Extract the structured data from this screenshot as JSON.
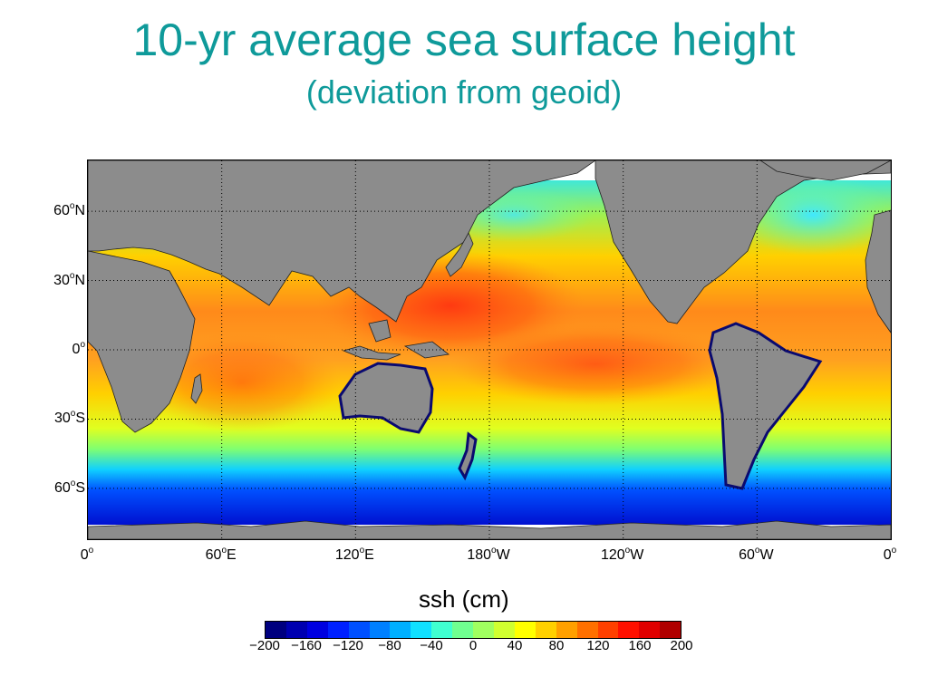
{
  "title": "10-yr average sea surface height",
  "subtitle": "(deviation from geoid)",
  "map": {
    "lat_labels": [
      {
        "lat": 60,
        "num": "60",
        "hemi": "N"
      },
      {
        "lat": 30,
        "num": "30",
        "hemi": "N"
      },
      {
        "lat": 0,
        "num": "0",
        "hemi": ""
      },
      {
        "lat": -30,
        "num": "30",
        "hemi": "S"
      },
      {
        "lat": -60,
        "num": "60",
        "hemi": "S"
      }
    ],
    "lon_labels": [
      {
        "lon": 0,
        "num": "0",
        "hemi": ""
      },
      {
        "lon": 60,
        "num": "60",
        "hemi": "E"
      },
      {
        "lon": 120,
        "num": "120",
        "hemi": "E"
      },
      {
        "lon": 180,
        "num": "180",
        "hemi": "W"
      },
      {
        "lon": 240,
        "num": "120",
        "hemi": "W"
      },
      {
        "lon": 300,
        "num": "60",
        "hemi": "W"
      },
      {
        "lon": 360,
        "num": "0",
        "hemi": ""
      }
    ],
    "lon_range": [
      0,
      360
    ],
    "lat_range": [
      -82,
      82
    ],
    "land_color": "#8c8c8c",
    "gridlines": "dotted"
  },
  "colorbar": {
    "label": "ssh (cm)",
    "ticks": [
      "−200",
      "−160",
      "−120",
      "−80",
      "−40",
      "0",
      "40",
      "80",
      "120",
      "160",
      "200"
    ],
    "range": [
      -200,
      200
    ],
    "colors": [
      "#00007f",
      "#0000b0",
      "#0000e0",
      "#0020ff",
      "#0050ff",
      "#0080ff",
      "#00b0ff",
      "#10e0ff",
      "#40ffd0",
      "#70ff90",
      "#a0ff60",
      "#d0ff30",
      "#ffff00",
      "#ffd000",
      "#ffa000",
      "#ff7000",
      "#ff4000",
      "#ff1000",
      "#e00000",
      "#b00000"
    ]
  }
}
